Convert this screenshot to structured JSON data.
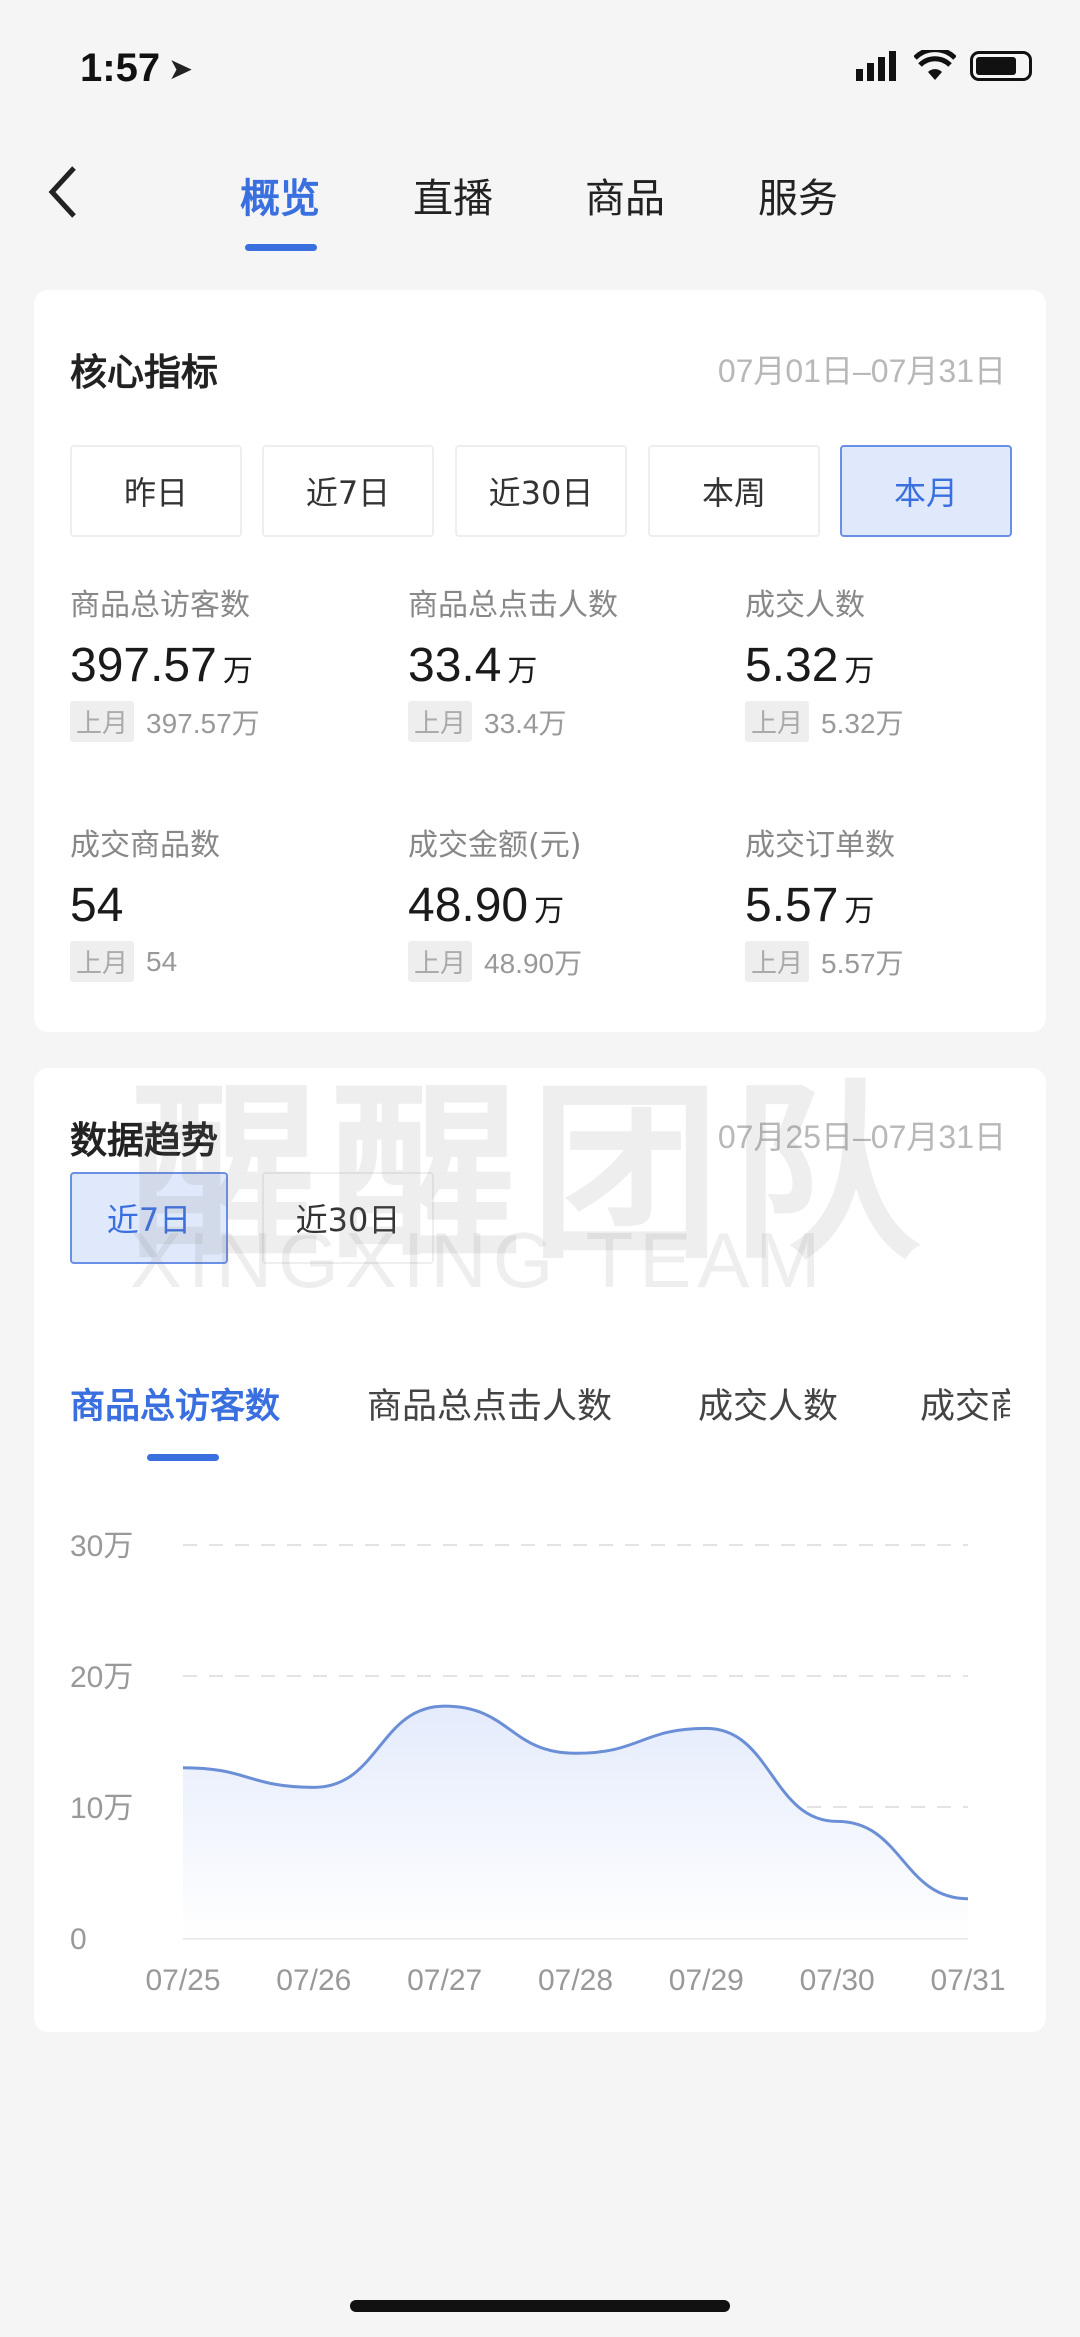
{
  "status_bar": {
    "time": "1:57"
  },
  "nav": {
    "tabs": [
      {
        "label": "概览"
      },
      {
        "label": "直播"
      },
      {
        "label": "商品"
      },
      {
        "label": "服务"
      }
    ],
    "active": "概览"
  },
  "core": {
    "title": "核心指标",
    "date_range": "07月01日–07月31日",
    "periods": [
      {
        "label": "昨日"
      },
      {
        "label": "近7日"
      },
      {
        "label": "近30日"
      },
      {
        "label": "本周"
      },
      {
        "label": "本月"
      }
    ],
    "active_period": "本月",
    "prev_tag": "上月",
    "metrics": [
      {
        "label": "商品总访客数",
        "value": "397.57",
        "unit": "万",
        "prev": "397.57万"
      },
      {
        "label": "商品总点击人数",
        "value": "33.4",
        "unit": "万",
        "prev": "33.4万"
      },
      {
        "label": "成交人数",
        "value": "5.32",
        "unit": "万",
        "prev": "5.32万"
      },
      {
        "label": "成交商品数",
        "value": "54",
        "unit": "",
        "prev": "54"
      },
      {
        "label": "成交金额(元)",
        "value": "48.90",
        "unit": "万",
        "prev": "48.90万"
      },
      {
        "label": "成交订单数",
        "value": "5.57",
        "unit": "万",
        "prev": "5.57万"
      }
    ]
  },
  "trend": {
    "title": "数据趋势",
    "date_range": "07月25日–07月31日",
    "periods": [
      {
        "label": "近7日"
      },
      {
        "label": "近30日"
      }
    ],
    "active_period": "近7日",
    "metric_tabs": [
      {
        "label": "商品总访客数"
      },
      {
        "label": "商品总点击人数"
      },
      {
        "label": "成交人数"
      },
      {
        "label": "成交商品数"
      }
    ],
    "active_metric": "商品总访客数"
  },
  "chart_data": {
    "type": "area",
    "categories": [
      "07/25",
      "07/26",
      "07/27",
      "07/28",
      "07/29",
      "07/30",
      "07/31"
    ],
    "values": [
      130000,
      115000,
      177000,
      141000,
      160000,
      89000,
      30000
    ],
    "yticks": [
      {
        "value": 0,
        "label": "0"
      },
      {
        "value": 100000,
        "label": "10万"
      },
      {
        "value": 200000,
        "label": "20万"
      },
      {
        "value": 300000,
        "label": "30万"
      }
    ],
    "ylim": [
      0,
      300000
    ],
    "grid": true,
    "line_color": "#6b8fd6",
    "fill_color": "#e4ebfb"
  },
  "watermark": {
    "text": "醒醒团队",
    "subtext": "XINGXING TEAM"
  },
  "colors": {
    "accent": "#3a6fe0",
    "background": "#f5f5f5"
  }
}
